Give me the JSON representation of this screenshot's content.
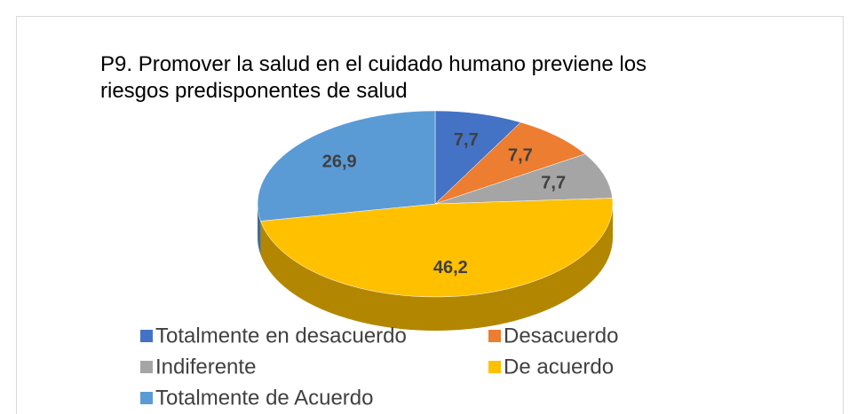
{
  "chart_data": {
    "type": "pie",
    "title": "P9. Promover la salud en el cuidado humano previene los riesgos predisponentes de salud",
    "categories": [
      "Totalmente en desacuerdo",
      "Desacuerdo",
      "Indiferente",
      "De acuerdo",
      "Totalmente de Acuerdo"
    ],
    "values": [
      7.7,
      7.7,
      7.7,
      46.2,
      26.9
    ],
    "value_labels": [
      "7,7",
      "7,7",
      "7,7",
      "46,2",
      "26,9"
    ],
    "colors": [
      "#4472c4",
      "#ed7d31",
      "#a5a5a5",
      "#ffc000",
      "#5b9bd5"
    ],
    "legend": "bottom"
  }
}
